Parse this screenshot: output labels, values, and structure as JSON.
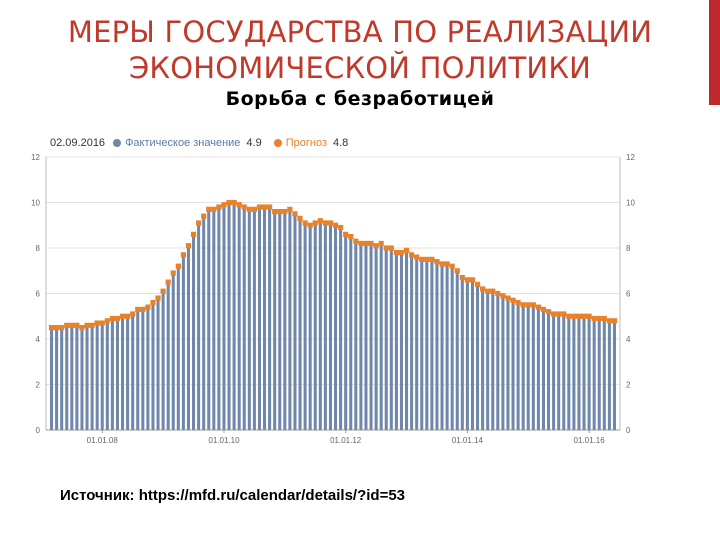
{
  "slide": {
    "title_line1": "МЕРЫ ГОСУДАРСТВА ПО РЕАЛИЗАЦИИ",
    "title_line2": "ЭКОНОМИЧЕСКОЙ ПОЛИТИКИ",
    "subtitle": "Борьба с безработицей",
    "source": "Источник: https://mfd.ru/calendar/details/?id=53",
    "accent_color": "#c0282d",
    "title_color": "#c0392b"
  },
  "legend": {
    "date": "02.09.2016",
    "actual_label": "Фактическое значение",
    "actual_value": "4.9",
    "forecast_label": "Прогноз",
    "forecast_value": "4.8",
    "actual_color": "#6f87ab",
    "forecast_color": "#e8822a"
  },
  "chart_data": {
    "type": "bar",
    "ylim": [
      0,
      12
    ],
    "yticks": [
      "0",
      "2",
      "4",
      "6",
      "8",
      "10",
      "12"
    ],
    "ytick_values": [
      0,
      2,
      4,
      6,
      8,
      10,
      12
    ],
    "xtick_labels": [
      "01.01.08",
      "01.01.10",
      "01.01.12",
      "01.01.14",
      "01.01.16"
    ],
    "xtick_index": [
      10,
      34,
      58,
      82,
      106
    ],
    "grid": true,
    "legend_position": "top-left",
    "series": [
      {
        "name": "Фактическое значение",
        "values": [
          4.5,
          4.5,
          4.5,
          4.6,
          4.6,
          4.6,
          4.5,
          4.6,
          4.6,
          4.7,
          4.7,
          4.8,
          4.9,
          4.9,
          5.0,
          5.0,
          5.1,
          5.3,
          5.3,
          5.4,
          5.6,
          5.8,
          6.1,
          6.5,
          6.9,
          7.2,
          7.7,
          8.1,
          8.6,
          9.1,
          9.4,
          9.7,
          9.7,
          9.8,
          9.9,
          10.0,
          10.0,
          9.9,
          9.8,
          9.7,
          9.7,
          9.8,
          9.8,
          9.8,
          9.6,
          9.6,
          9.6,
          9.7,
          9.5,
          9.3,
          9.1,
          9.0,
          9.1,
          9.2,
          9.1,
          9.1,
          9.0,
          8.9,
          8.6,
          8.5,
          8.3,
          8.2,
          8.2,
          8.2,
          8.1,
          8.2,
          8.0,
          8.0,
          7.8,
          7.8,
          7.9,
          7.7,
          7.6,
          7.5,
          7.5,
          7.5,
          7.4,
          7.3,
          7.3,
          7.2,
          7.0,
          6.7,
          6.6,
          6.6,
          6.4,
          6.2,
          6.1,
          6.1,
          6.0,
          5.9,
          5.8,
          5.7,
          5.6,
          5.5,
          5.5,
          5.5,
          5.4,
          5.3,
          5.2,
          5.1,
          5.1,
          5.1,
          5.0,
          5.0,
          5.0,
          5.0,
          5.0,
          4.9,
          4.9,
          4.9,
          4.8,
          4.8
        ],
        "color": "#6f87ab"
      },
      {
        "name": "Прогноз",
        "values": [
          4.5,
          4.5,
          4.5,
          4.6,
          4.6,
          4.6,
          4.5,
          4.6,
          4.6,
          4.7,
          4.7,
          4.8,
          4.9,
          4.9,
          5.0,
          5.0,
          5.1,
          5.3,
          5.3,
          5.4,
          5.6,
          5.8,
          6.1,
          6.5,
          6.9,
          7.2,
          7.7,
          8.1,
          8.6,
          9.1,
          9.4,
          9.7,
          9.7,
          9.8,
          9.9,
          10.0,
          10.0,
          9.9,
          9.8,
          9.7,
          9.7,
          9.8,
          9.8,
          9.8,
          9.6,
          9.6,
          9.6,
          9.7,
          9.5,
          9.3,
          9.1,
          9.0,
          9.1,
          9.2,
          9.1,
          9.1,
          9.0,
          8.9,
          8.6,
          8.5,
          8.3,
          8.2,
          8.2,
          8.2,
          8.1,
          8.2,
          8.0,
          8.0,
          7.8,
          7.8,
          7.9,
          7.7,
          7.6,
          7.5,
          7.5,
          7.5,
          7.4,
          7.3,
          7.3,
          7.2,
          7.0,
          6.7,
          6.6,
          6.6,
          6.4,
          6.2,
          6.1,
          6.1,
          6.0,
          5.9,
          5.8,
          5.7,
          5.6,
          5.5,
          5.5,
          5.5,
          5.4,
          5.3,
          5.2,
          5.1,
          5.1,
          5.1,
          5.0,
          5.0,
          5.0,
          5.0,
          5.0,
          4.9,
          4.9,
          4.9,
          4.8,
          4.8
        ],
        "color": "#e8822a"
      }
    ]
  }
}
